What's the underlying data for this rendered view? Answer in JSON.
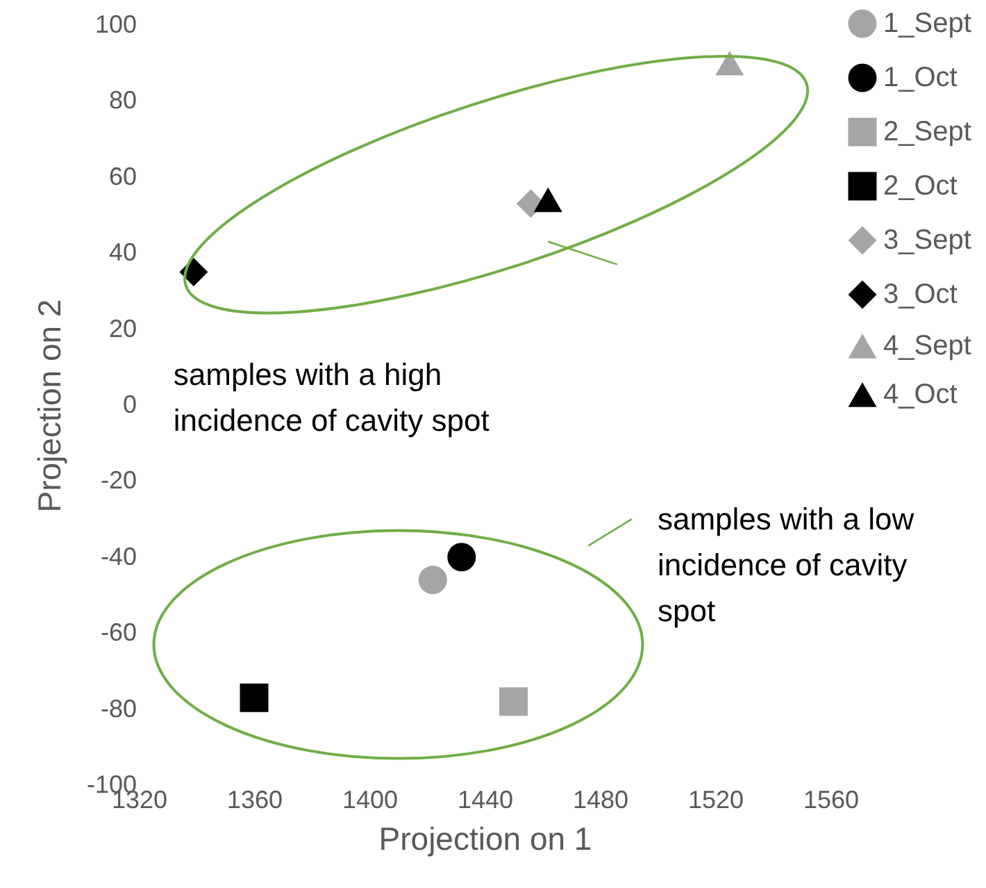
{
  "chart_data": {
    "type": "scatter",
    "xlabel": "Projection on 1",
    "ylabel": "Projection on 2",
    "xlim": [
      1320,
      1560
    ],
    "xticks": [
      1320,
      1360,
      1400,
      1440,
      1480,
      1520,
      1560
    ],
    "ylim": [
      -100,
      100
    ],
    "yticks": [
      -100,
      -80,
      -60,
      -40,
      -20,
      0,
      20,
      40,
      60,
      80,
      100
    ],
    "grid": false,
    "legend": "top right",
    "series": [
      {
        "name": "1_Sept",
        "color": "#a5a5a5",
        "marker": "circle",
        "x": [
          1422
        ],
        "values": [
          -46
        ]
      },
      {
        "name": "1_Oct",
        "color": "#000000",
        "marker": "circle",
        "x": [
          1432
        ],
        "values": [
          -40
        ]
      },
      {
        "name": "2_Sept",
        "color": "#a5a5a5",
        "marker": "square",
        "x": [
          1450
        ],
        "values": [
          -78
        ]
      },
      {
        "name": "2_Oct",
        "color": "#000000",
        "marker": "square",
        "x": [
          1360
        ],
        "values": [
          -77
        ]
      },
      {
        "name": "3_Sept",
        "color": "#a5a5a5",
        "marker": "diamond",
        "x": [
          1456
        ],
        "values": [
          53
        ]
      },
      {
        "name": "3_Oct",
        "color": "#000000",
        "marker": "diamond",
        "x": [
          1339
        ],
        "values": [
          35
        ]
      },
      {
        "name": "4_Sept",
        "color": "#a5a5a5",
        "marker": "triangle",
        "x": [
          1525
        ],
        "values": [
          90
        ]
      },
      {
        "name": "4_Oct",
        "color": "#000000",
        "marker": "triangle",
        "x": [
          1462
        ],
        "values": [
          54
        ]
      }
    ],
    "annotations": [
      "samples with a high incidence of cavity spot",
      "samples with a low incidence of cavity spot"
    ]
  }
}
